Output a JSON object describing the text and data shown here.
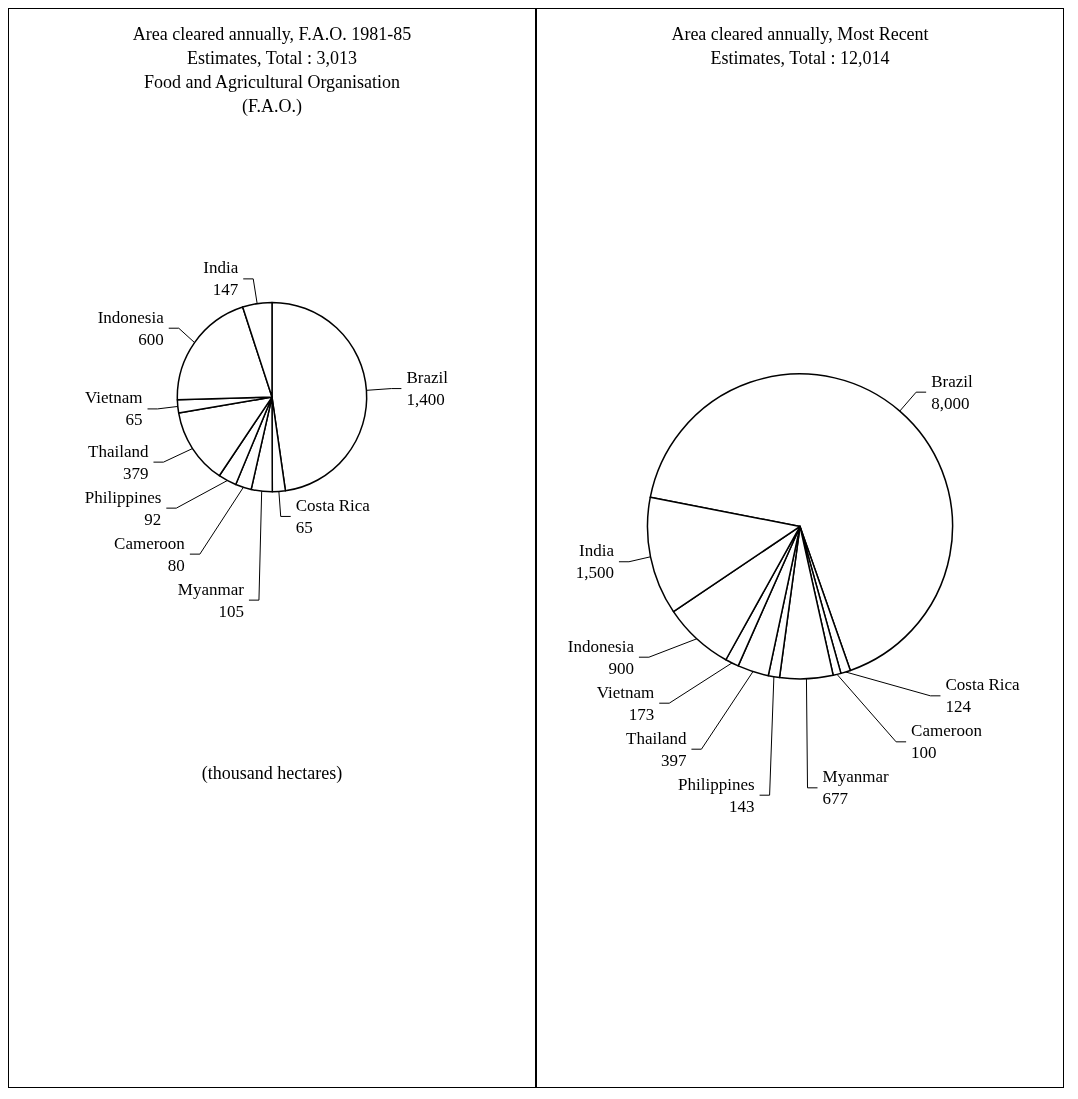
{
  "chart_data": [
    {
      "type": "pie",
      "title": "Area cleared annually, F.A.O. 1981-85\nEstimates, Total : 3,013\nFood and Agricultural Organisation\n(F.A.O.)",
      "categories": [
        "Brazil",
        "Costa Rica",
        "Myanmar",
        "Cameroon",
        "Philippines",
        "Thailand",
        "Vietnam",
        "Indonesia",
        "India"
      ],
      "values": [
        1400,
        65,
        105,
        80,
        92,
        379,
        65,
        600,
        147
      ],
      "colors": [
        "#ffffff",
        "#ffffff",
        "#ffffff",
        "#ffffff",
        "#ffffff",
        "#ffffff",
        "#ffffff",
        "#ffffff",
        "#ffffff"
      ],
      "value_labels": [
        "1,400",
        "65",
        "105",
        "80",
        "92",
        "379",
        "65",
        "600",
        "147"
      ],
      "annotations": [
        "(thousand hectares)"
      ]
    },
    {
      "type": "pie",
      "title": "Area cleared annually, Most Recent\nEstimates, Total : 12,014",
      "categories": [
        "Brazil",
        "Costa Rica",
        "Cameroon",
        "Myanmar",
        "Philippines",
        "Thailand",
        "Vietnam",
        "Indonesia",
        "India"
      ],
      "values": [
        8000,
        124,
        100,
        677,
        143,
        397,
        173,
        900,
        1500
      ],
      "colors": [
        "#ffffff",
        "#ffffff",
        "#ffffff",
        "#ffffff",
        "#ffffff",
        "#ffffff",
        "#ffffff",
        "#ffffff",
        "#ffffff"
      ],
      "value_labels": [
        "8,000",
        "124",
        "100",
        "677",
        "143",
        "397",
        "173",
        "900",
        "1,500"
      ]
    }
  ]
}
